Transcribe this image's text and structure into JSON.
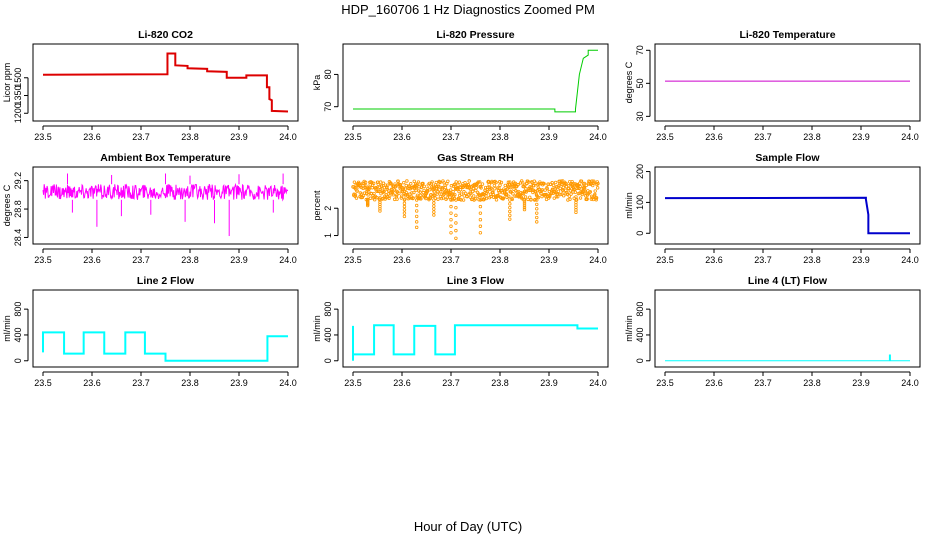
{
  "figure": {
    "title": "HDP_160706  1 Hz Diagnostics Zoomed PM",
    "xlabel": "Hour of Day (UTC)"
  },
  "chart_data": [
    {
      "type": "line",
      "title": "Li-820 CO2",
      "ylabel": "Licor ppm",
      "color": "#dd0000",
      "xlim": [
        23.5,
        24.0
      ],
      "ylim": [
        1160,
        1760
      ],
      "xticks": [
        "23.5",
        "23.6",
        "23.7",
        "23.8",
        "23.9",
        "24.0"
      ],
      "yticks": [
        1200,
        1350,
        1500
      ],
      "series": [
        {
          "x": [
            23.5,
            23.754,
            23.754,
            23.77,
            23.77,
            23.795,
            23.795,
            23.835,
            23.835,
            23.875,
            23.875,
            23.915,
            23.915,
            23.957,
            23.957,
            23.962,
            23.962,
            23.967,
            23.967,
            24.0
          ],
          "y": [
            1525,
            1530,
            1705,
            1705,
            1605,
            1600,
            1580,
            1575,
            1555,
            1550,
            1500,
            1500,
            1520,
            1520,
            1420,
            1420,
            1320,
            1310,
            1220,
            1215
          ]
        }
      ]
    },
    {
      "type": "line",
      "title": "Li-820 Pressure",
      "ylabel": "kPa",
      "color": "#00cc00",
      "xlim": [
        23.5,
        24.0
      ],
      "ylim": [
        66.5,
        88.5
      ],
      "xticks": [
        "23.5",
        "23.6",
        "23.7",
        "23.8",
        "23.9",
        "24.0"
      ],
      "yticks": [
        70,
        80
      ],
      "series": [
        {
          "x": [
            23.5,
            23.912,
            23.912,
            23.954,
            23.954,
            23.962,
            23.97,
            23.98,
            23.98,
            24.0
          ],
          "y": [
            69.3,
            69.3,
            68.4,
            68.4,
            69.2,
            80,
            85,
            86,
            87.5,
            87.5
          ]
        }
      ]
    },
    {
      "type": "line",
      "title": "Li-820 Temperature",
      "ylabel": "degrees C",
      "color": "#cc00cc",
      "xlim": [
        23.5,
        24.0
      ],
      "ylim": [
        29,
        72
      ],
      "xticks": [
        "23.5",
        "23.6",
        "23.7",
        "23.8",
        "23.9",
        "24.0"
      ],
      "yticks": [
        30,
        50,
        70
      ],
      "series": [
        {
          "x": [
            23.5,
            24.0
          ],
          "y": [
            51.3,
            51.3
          ]
        }
      ]
    },
    {
      "type": "line",
      "title": "Ambient Box Temperature",
      "ylabel": "degrees C",
      "color": "#ff00ff",
      "xlim": [
        23.5,
        24.0
      ],
      "ylim": [
        28.35,
        29.35
      ],
      "xticks": [
        "23.5",
        "23.6",
        "23.7",
        "23.8",
        "23.9",
        "24.0"
      ],
      "yticks": [
        28.4,
        28.8,
        29.2
      ],
      "series": [
        {
          "band": [
            28.93,
            29.15
          ],
          "spikes_down": [
            [
              23.56,
              28.75
            ],
            [
              23.61,
              28.55
            ],
            [
              23.66,
              28.7
            ],
            [
              23.72,
              28.72
            ],
            [
              23.79,
              28.62
            ],
            [
              23.85,
              28.6
            ],
            [
              23.88,
              28.42
            ],
            [
              23.97,
              28.75
            ]
          ],
          "spikes_up": [
            [
              23.55,
              29.3
            ],
            [
              23.64,
              29.28
            ],
            [
              23.75,
              29.3
            ],
            [
              23.8,
              29.27
            ],
            [
              23.9,
              29.29
            ],
            [
              23.99,
              29.3
            ]
          ]
        }
      ]
    },
    {
      "type": "scatter",
      "title": "Gas Stream RH",
      "ylabel": "percent",
      "color": "#ff9900",
      "xlim": [
        23.5,
        24.0
      ],
      "ylim": [
        0.8,
        3.4
      ],
      "xticks": [
        "23.5",
        "23.6",
        "23.7",
        "23.8",
        "23.9",
        "24.0"
      ],
      "yticks": [
        1.0,
        2.0
      ],
      "series": [
        {
          "band": [
            2.3,
            3.0
          ],
          "dips": [
            [
              23.53,
              2.1
            ],
            [
              23.555,
              1.9
            ],
            [
              23.605,
              1.7
            ],
            [
              23.63,
              1.3
            ],
            [
              23.665,
              1.75
            ],
            [
              23.7,
              1.1
            ],
            [
              23.71,
              0.9
            ],
            [
              23.76,
              1.1
            ],
            [
              23.82,
              1.6
            ],
            [
              23.85,
              1.95
            ],
            [
              23.875,
              1.5
            ],
            [
              23.955,
              1.85
            ]
          ]
        }
      ]
    },
    {
      "type": "line",
      "title": "Sample Flow",
      "ylabel": "ml/min",
      "color": "#0000cc",
      "xlim": [
        23.5,
        24.0
      ],
      "ylim": [
        -25,
        205
      ],
      "xticks": [
        "23.5",
        "23.6",
        "23.7",
        "23.8",
        "23.9",
        "24.0"
      ],
      "yticks": [
        0,
        100,
        200
      ],
      "series": [
        {
          "x": [
            23.5,
            23.91,
            23.91,
            23.915,
            23.915,
            24.0
          ],
          "y": [
            114,
            115,
            110,
            60,
            0,
            0
          ]
        }
      ]
    },
    {
      "type": "line",
      "title": "Line 2 Flow",
      "ylabel": "ml/min",
      "color": "#00ffff",
      "xlim": [
        23.5,
        24.0
      ],
      "ylim": [
        -50,
        1050
      ],
      "xticks": [
        "23.5",
        "23.6",
        "23.7",
        "23.8",
        "23.9",
        "24.0"
      ],
      "yticks": [
        0,
        400,
        800
      ],
      "series": [
        {
          "x": [
            23.5,
            23.5,
            23.543,
            23.543,
            23.583,
            23.583,
            23.625,
            23.625,
            23.668,
            23.668,
            23.708,
            23.708,
            23.75,
            23.75,
            23.958,
            23.958,
            24.0
          ],
          "y": [
            130,
            440,
            440,
            110,
            110,
            440,
            440,
            110,
            110,
            440,
            440,
            110,
            110,
            0,
            0,
            380,
            380
          ]
        }
      ]
    },
    {
      "type": "line",
      "title": "Line 3 Flow",
      "ylabel": "ml/min",
      "color": "#00ffff",
      "xlim": [
        23.5,
        24.0
      ],
      "ylim": [
        -50,
        1050
      ],
      "xticks": [
        "23.5",
        "23.6",
        "23.7",
        "23.8",
        "23.9",
        "24.0"
      ],
      "yticks": [
        0,
        400,
        800
      ],
      "series": [
        {
          "x": [
            23.5,
            23.5,
            23.5,
            23.543,
            23.543,
            23.583,
            23.583,
            23.625,
            23.625,
            23.668,
            23.668,
            23.708,
            23.708,
            23.958,
            23.958,
            24.0
          ],
          "y": [
            0,
            540,
            100,
            100,
            550,
            550,
            100,
            100,
            540,
            540,
            100,
            100,
            550,
            550,
            500,
            500
          ]
        }
      ]
    },
    {
      "type": "line",
      "title": "Line 4 (LT) Flow",
      "ylabel": "ml/min",
      "color": "#00ffff",
      "xlim": [
        23.5,
        24.0
      ],
      "ylim": [
        -50,
        1050
      ],
      "xticks": [
        "23.5",
        "23.6",
        "23.7",
        "23.8",
        "23.9",
        "24.0"
      ],
      "yticks": [
        0,
        400,
        800
      ],
      "series": [
        {
          "x": [
            23.5,
            23.958,
            23.958,
            23.96,
            23.96,
            24.0
          ],
          "y": [
            0,
            0,
            90,
            90,
            0,
            0
          ]
        }
      ]
    }
  ]
}
